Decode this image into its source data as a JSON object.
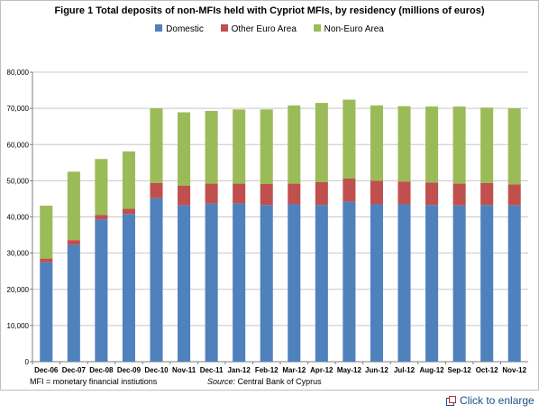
{
  "chart_data": {
    "type": "bar",
    "stacked": true,
    "title": "Figure 1 Total deposits of non-MFIs held with Cypriot MFIs, by residency (millions of euros)",
    "categories": [
      "Dec-06",
      "Dec-07",
      "Dec-08",
      "Dec-09",
      "Dec-10",
      "Nov-11",
      "Dec-11",
      "Jan-12",
      "Feb-12",
      "Mar-12",
      "Apr-12",
      "May-12",
      "Jun-12",
      "Jul-12",
      "Aug-12",
      "Sep-12",
      "Oct-12",
      "Nov-12"
    ],
    "series": [
      {
        "name": "Domestic",
        "color": "#4f81bd",
        "values": [
          27500,
          32300,
          39300,
          40800,
          45200,
          43200,
          43700,
          43700,
          43300,
          43500,
          43300,
          44200,
          43500,
          43500,
          43300,
          43200,
          43300,
          43200
        ]
      },
      {
        "name": "Other Euro Area",
        "color": "#c0504d",
        "values": [
          1000,
          1300,
          1200,
          1500,
          4200,
          5400,
          5500,
          5500,
          5800,
          5700,
          6300,
          6400,
          6500,
          6300,
          6200,
          6000,
          6100,
          5800
        ]
      },
      {
        "name": "Non-Euro Area",
        "color": "#9bbb59",
        "values": [
          14600,
          18900,
          15500,
          15800,
          20600,
          20300,
          20100,
          20500,
          20600,
          21600,
          21900,
          21800,
          20800,
          20800,
          21000,
          21300,
          20800,
          21000
        ]
      }
    ],
    "ylim": [
      0,
      80000
    ],
    "yticks": [
      "0",
      "10,000",
      "20,000",
      "30,000",
      "40,000",
      "50,000",
      "60,000",
      "70,000",
      "80,000"
    ],
    "ytick_values": [
      0,
      10000,
      20000,
      30000,
      40000,
      50000,
      60000,
      70000,
      80000
    ],
    "grid": true,
    "legend_position": "top"
  },
  "notes": {
    "mfi": "MFI = monetary financial instiutions",
    "source_label": "Source:",
    "source_text": " Central Bank of Cyprus"
  },
  "enlarge_label": "Click to enlarge"
}
